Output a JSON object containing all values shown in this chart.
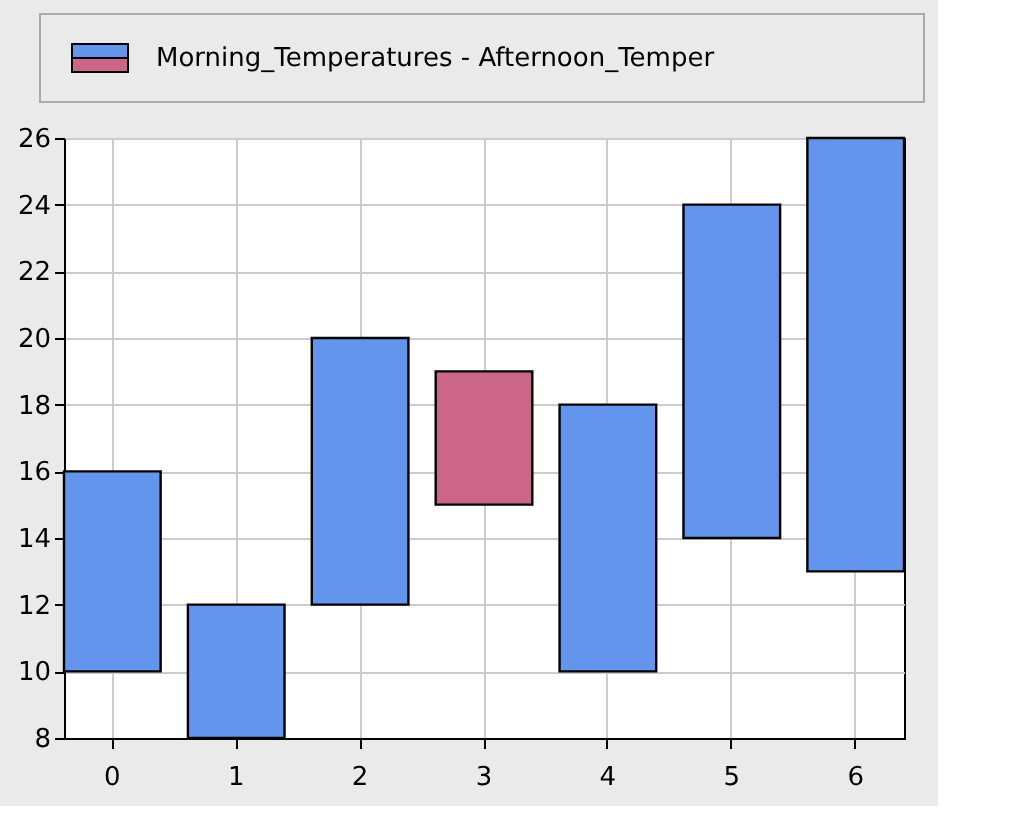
{
  "chart_data": {
    "type": "bar",
    "categories": [
      "0",
      "1",
      "2",
      "3",
      "4",
      "5",
      "6"
    ],
    "series": [
      {
        "name": "Morning_Temperatures - Afternoon_Temper",
        "base": [
          10,
          8,
          12,
          15,
          10,
          14,
          13
        ],
        "values": [
          6,
          4,
          8,
          4,
          8,
          10,
          13
        ],
        "colors": [
          "#6495ed",
          "#6495ed",
          "#6495ed",
          "#cc6688",
          "#6495ed",
          "#6495ed",
          "#6495ed"
        ]
      }
    ],
    "ylim": [
      8,
      26
    ],
    "yticks": [
      8,
      10,
      12,
      14,
      16,
      18,
      20,
      22,
      24,
      26
    ],
    "grid": true,
    "legend": "top"
  }
}
